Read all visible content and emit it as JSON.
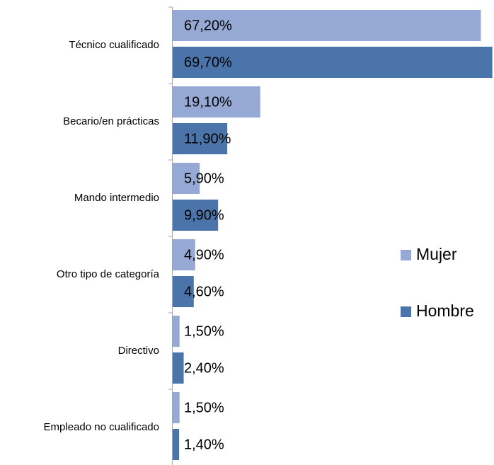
{
  "chart_data": {
    "type": "barh",
    "categories": [
      "Técnico cualificado",
      "Becario/en prácticas",
      "Mando intermedio",
      "Otro tipo de categoría",
      "Directivo",
      "Empleado no cualificado"
    ],
    "series": [
      {
        "name": "Mujer",
        "color": "#95a9d4",
        "values": [
          67.2,
          19.1,
          5.9,
          4.9,
          1.5,
          1.5
        ],
        "value_labels": [
          "67,20%",
          "19,10%",
          "5,90%",
          "4,90%",
          "1,50%",
          "1,50%"
        ]
      },
      {
        "name": "Hombre",
        "color": "#4a74aa",
        "values": [
          69.7,
          11.9,
          9.9,
          4.6,
          2.4,
          1.4
        ],
        "value_labels": [
          "69,70%",
          "11,90%",
          "9,90%",
          "4,60%",
          "2,40%",
          "1,40%"
        ]
      }
    ],
    "legend": "right"
  }
}
